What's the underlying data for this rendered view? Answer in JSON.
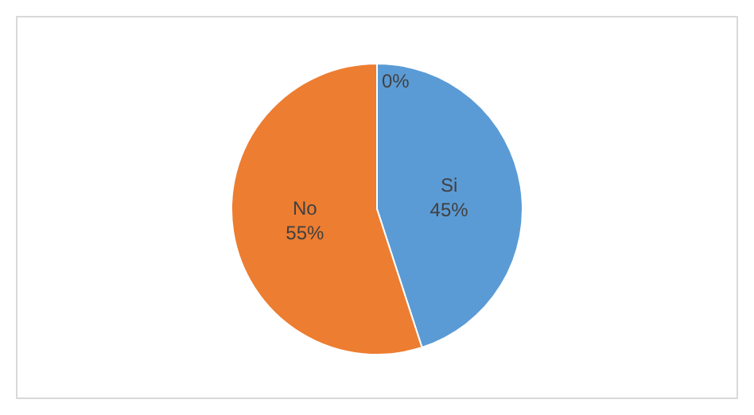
{
  "chart_data": {
    "type": "pie",
    "categories": [
      "Si",
      "No",
      null
    ],
    "values": [
      45,
      55,
      0
    ],
    "value_labels": [
      "45%",
      "55%",
      "0%"
    ],
    "colors": [
      "#5b9bd5",
      "#ed7d31",
      "#a5a5a5"
    ],
    "legend": false
  }
}
